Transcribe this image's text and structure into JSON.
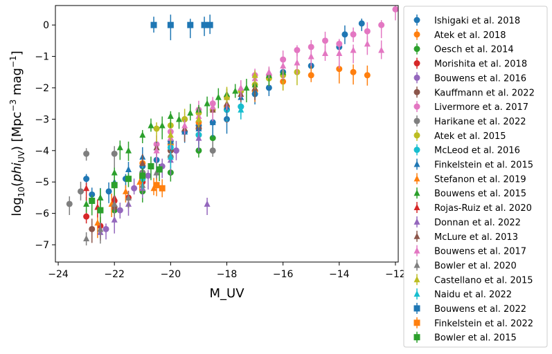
{
  "chart_data": {
    "type": "scatter",
    "xlabel": "M_UV",
    "ylabel": "log$_{10}$($phi_{\\rm UV}$) [Mpc$^{-3}$ mag$^{-1}$]",
    "xlim": [
      -24.1,
      -11.9
    ],
    "ylim": [
      -7.55,
      0.62
    ],
    "xticks": [
      -24,
      -22,
      -20,
      -18,
      -16,
      -14,
      -12
    ],
    "yticks": [
      0,
      -1,
      -2,
      -3,
      -4,
      -5,
      -6,
      -7
    ],
    "xtick_labels": [
      "−24",
      "−22",
      "−20",
      "−18",
      "−16",
      "−14",
      "−12"
    ],
    "ytick_labels": [
      "0",
      "−1",
      "−2",
      "−3",
      "−4",
      "−5",
      "−6",
      "−7"
    ],
    "legend_position": "outside-right",
    "grid": false,
    "series": [
      {
        "name": "Ishigaki et al. 2018",
        "color": "#1f77b4",
        "marker": "circle",
        "points": [
          [
            -23.0,
            -4.9
          ],
          [
            -22.8,
            -5.4
          ],
          [
            -22.2,
            -5.3
          ],
          [
            -21.6,
            -4.9
          ],
          [
            -21.0,
            -4.5
          ],
          [
            -20.5,
            -4.3
          ],
          [
            -20.0,
            -3.7
          ],
          [
            -19.5,
            -3.4
          ],
          [
            -19.0,
            -3.2
          ],
          [
            -18.5,
            -3.1
          ],
          [
            -18.0,
            -3.0
          ],
          [
            -17.5,
            -2.6
          ],
          [
            -17.0,
            -2.2
          ],
          [
            -16.5,
            -2.0
          ],
          [
            -16.0,
            -1.5
          ],
          [
            -15.0,
            -1.3
          ],
          [
            -14.0,
            -0.7
          ],
          [
            -13.8,
            -0.3
          ],
          [
            -13.2,
            0.05
          ]
        ]
      },
      {
        "name": "Atek et al. 2018",
        "color": "#ff7f0e",
        "marker": "circle",
        "points": [
          [
            -21.0,
            -4.4
          ],
          [
            -20.0,
            -3.8
          ],
          [
            -19.0,
            -3.1
          ],
          [
            -18.0,
            -2.6
          ],
          [
            -17.0,
            -2.1
          ],
          [
            -16.0,
            -1.8
          ],
          [
            -15.0,
            -1.6
          ],
          [
            -14.0,
            -1.4
          ],
          [
            -13.5,
            -1.5
          ],
          [
            -13.0,
            -1.6
          ]
        ]
      },
      {
        "name": "Oesch et al. 2014",
        "color": "#2ca02c",
        "marker": "circle",
        "points": [
          [
            -22.0,
            -5.9
          ],
          [
            -21.0,
            -5.3
          ],
          [
            -20.0,
            -4.7
          ],
          [
            -19.0,
            -4.0
          ],
          [
            -18.5,
            -3.6
          ]
        ]
      },
      {
        "name": "Morishita et al. 2018",
        "color": "#d62728",
        "marker": "circle",
        "points": [
          [
            -23.0,
            -6.1
          ],
          [
            -22.5,
            -6.4
          ],
          [
            -22.0,
            -5.6
          ],
          [
            -21.5,
            -5.5
          ],
          [
            -21.0,
            -5.0
          ]
        ]
      },
      {
        "name": "Bouwens et al. 2016",
        "color": "#9467bd",
        "marker": "circle",
        "points": [
          [
            -22.3,
            -6.5
          ],
          [
            -21.8,
            -5.9
          ],
          [
            -21.3,
            -5.2
          ],
          [
            -20.8,
            -4.8
          ],
          [
            -20.3,
            -4.5
          ],
          [
            -19.8,
            -4.0
          ]
        ]
      },
      {
        "name": "Kauffmann et al. 2022",
        "color": "#8c564b",
        "marker": "circle",
        "points": [
          [
            -22.8,
            -6.5
          ],
          [
            -22.0,
            -5.8
          ],
          [
            -21.0,
            -4.9
          ],
          [
            -20.0,
            -4.0
          ],
          [
            -19.0,
            -3.3
          ],
          [
            -18.0,
            -2.7
          ]
        ]
      },
      {
        "name": "Livermore et a. 2017",
        "color": "#e377c2",
        "marker": "circle",
        "points": [
          [
            -20.5,
            -3.8
          ],
          [
            -20.0,
            -3.4
          ],
          [
            -19.5,
            -3.0
          ],
          [
            -19.0,
            -2.7
          ],
          [
            -18.5,
            -2.5
          ],
          [
            -18.0,
            -2.3
          ],
          [
            -17.5,
            -2.1
          ],
          [
            -17.0,
            -1.6
          ],
          [
            -16.5,
            -1.6
          ],
          [
            -16.0,
            -1.1
          ],
          [
            -15.5,
            -0.8
          ],
          [
            -15.0,
            -0.7
          ],
          [
            -14.5,
            -0.5
          ],
          [
            -14.0,
            -0.6
          ],
          [
            -13.5,
            -0.3
          ],
          [
            -13.0,
            -0.2
          ],
          [
            -12.5,
            0.0
          ],
          [
            -12.0,
            0.5
          ]
        ]
      },
      {
        "name": "Harikane et al. 2022",
        "color": "#7f7f7f",
        "marker": "circle",
        "points": [
          [
            -23.6,
            -5.7
          ],
          [
            -23.2,
            -5.3
          ],
          [
            -23.0,
            -4.1
          ],
          [
            -22.0,
            -4.1
          ],
          [
            -21.0,
            -4.7
          ],
          [
            -20.0,
            -4.2
          ],
          [
            -19.0,
            -3.5
          ],
          [
            -18.5,
            -4.0
          ]
        ]
      },
      {
        "name": "Atek et al. 2015",
        "color": "#bcbd22",
        "marker": "circle",
        "points": [
          [
            -20.5,
            -3.3
          ],
          [
            -20.0,
            -3.2
          ],
          [
            -19.5,
            -3.0
          ],
          [
            -19.0,
            -2.8
          ],
          [
            -18.5,
            -2.7
          ],
          [
            -18.0,
            -2.3
          ],
          [
            -17.5,
            -2.1
          ],
          [
            -17.0,
            -1.9
          ],
          [
            -16.5,
            -1.7
          ],
          [
            -16.0,
            -1.6
          ],
          [
            -15.5,
            -1.5
          ]
        ]
      },
      {
        "name": "McLeod et al. 2016",
        "color": "#17becf",
        "marker": "circle",
        "points": [
          [
            -21.0,
            -4.9
          ],
          [
            -20.0,
            -3.9
          ],
          [
            -19.0,
            -3.5
          ],
          [
            -18.0,
            -2.7
          ],
          [
            -17.5,
            -2.6
          ]
        ]
      },
      {
        "name": "Finkelstein et al. 2015",
        "color": "#1f77b4",
        "marker": "triangle-up",
        "points": [
          [
            -22.5,
            -5.5
          ],
          [
            -22.0,
            -5.0
          ],
          [
            -21.5,
            -4.6
          ],
          [
            -21.0,
            -4.2
          ],
          [
            -20.5,
            -3.9
          ],
          [
            -20.0,
            -3.7
          ],
          [
            -19.5,
            -3.4
          ],
          [
            -19.0,
            -3.3
          ],
          [
            -18.5,
            -3.1
          ],
          [
            -18.0,
            -2.6
          ],
          [
            -17.5,
            -2.3
          ],
          [
            -17.0,
            -2.1
          ]
        ]
      },
      {
        "name": "Stefanon et al. 2019",
        "color": "#ff7f0e",
        "marker": "triangle-up",
        "points": [
          [
            -22.6,
            -6.3
          ],
          [
            -22.1,
            -5.7
          ],
          [
            -21.6,
            -5.3
          ],
          [
            -21.1,
            -5.0
          ],
          [
            -20.6,
            -5.2
          ]
        ]
      },
      {
        "name": "Bouwens et al. 2015",
        "color": "#2ca02c",
        "marker": "triangle-up",
        "points": [
          [
            -23.0,
            -5.7
          ],
          [
            -22.5,
            -5.5
          ],
          [
            -22.0,
            -4.7
          ],
          [
            -21.8,
            -3.9
          ],
          [
            -21.5,
            -4.0
          ],
          [
            -21.0,
            -3.5
          ],
          [
            -20.7,
            -3.2
          ],
          [
            -20.3,
            -3.2
          ],
          [
            -20.0,
            -2.9
          ],
          [
            -19.7,
            -3.0
          ],
          [
            -19.3,
            -2.8
          ],
          [
            -19.0,
            -2.7
          ],
          [
            -18.7,
            -2.5
          ],
          [
            -18.3,
            -2.3
          ],
          [
            -18.0,
            -2.2
          ],
          [
            -17.7,
            -2.1
          ],
          [
            -17.3,
            -2.0
          ],
          [
            -17.0,
            -1.9
          ],
          [
            -16.5,
            -1.6
          ],
          [
            -16.0,
            -1.5
          ]
        ]
      },
      {
        "name": "Rojas-Ruiz et al. 2020",
        "color": "#d62728",
        "marker": "triangle-up",
        "points": [
          [
            -23.0,
            -5.2
          ],
          [
            -22.6,
            -5.8
          ],
          [
            -22.0,
            -5.5
          ]
        ]
      },
      {
        "name": "Donnan et al. 2022",
        "color": "#9467bd",
        "marker": "triangle-up",
        "points": [
          [
            -22.5,
            -6.6
          ],
          [
            -22.0,
            -6.2
          ],
          [
            -21.5,
            -5.7
          ],
          [
            -21.0,
            -5.2
          ],
          [
            -20.5,
            -4.7
          ],
          [
            -20.0,
            -4.3
          ],
          [
            -19.0,
            -3.6
          ],
          [
            -18.7,
            -5.7
          ]
        ]
      },
      {
        "name": "McLure et al. 2013",
        "color": "#8c564b",
        "marker": "triangle-up",
        "points": [
          [
            -21.0,
            -4.4
          ],
          [
            -20.5,
            -3.9
          ],
          [
            -20.0,
            -3.6
          ],
          [
            -19.5,
            -3.3
          ],
          [
            -19.0,
            -3.0
          ],
          [
            -18.5,
            -2.7
          ],
          [
            -18.0,
            -2.5
          ],
          [
            -17.5,
            -2.2
          ],
          [
            -17.0,
            -2.0
          ]
        ]
      },
      {
        "name": "Bouwens et al. 2017",
        "color": "#e377c2",
        "marker": "triangle-up",
        "points": [
          [
            -20.5,
            -4.0
          ],
          [
            -20.0,
            -3.6
          ],
          [
            -19.5,
            -3.2
          ],
          [
            -19.0,
            -2.9
          ],
          [
            -18.5,
            -2.6
          ],
          [
            -18.0,
            -2.3
          ],
          [
            -17.5,
            -2.0
          ],
          [
            -17.0,
            -1.7
          ],
          [
            -16.5,
            -1.5
          ],
          [
            -16.0,
            -1.3
          ],
          [
            -15.5,
            -1.2
          ],
          [
            -15.0,
            -1.0
          ],
          [
            -14.5,
            -0.9
          ],
          [
            -14.0,
            -0.9
          ],
          [
            -13.5,
            -0.8
          ],
          [
            -13.0,
            -0.6
          ],
          [
            -12.5,
            -0.8
          ]
        ]
      },
      {
        "name": "Bowler et al. 2020",
        "color": "#7f7f7f",
        "marker": "triangle-up",
        "points": [
          [
            -23.0,
            -6.8
          ],
          [
            -22.5,
            -6.5
          ],
          [
            -22.0,
            -5.7
          ],
          [
            -21.5,
            -5.5
          ],
          [
            -21.0,
            -5.1
          ],
          [
            -20.5,
            -4.7
          ]
        ]
      },
      {
        "name": "Castellano et al. 2015",
        "color": "#bcbd22",
        "marker": "triangle-up",
        "points": [
          [
            -20.0,
            -3.5
          ],
          [
            -19.0,
            -3.0
          ],
          [
            -18.0,
            -2.3
          ],
          [
            -17.0,
            -1.6
          ]
        ]
      },
      {
        "name": "Naidu et al. 2022",
        "color": "#17becf",
        "marker": "triangle-up",
        "points": [
          [
            -21.0,
            -4.8
          ],
          [
            -20.0,
            -4.2
          ],
          [
            -17.5,
            -2.7
          ]
        ]
      },
      {
        "name": "Bouwens et al. 2022",
        "color": "#1f77b4",
        "marker": "square",
        "points": [
          [
            -20.6,
            0.0
          ],
          [
            -20.0,
            0.0
          ],
          [
            -19.3,
            0.0
          ],
          [
            -18.8,
            0.0
          ],
          [
            -18.6,
            0.0
          ]
        ]
      },
      {
        "name": "Finkelstein et al. 2022",
        "color": "#ff7f0e",
        "marker": "square",
        "points": [
          [
            -20.5,
            -5.1
          ],
          [
            -20.3,
            -5.2
          ]
        ]
      },
      {
        "name": "Bowler et al. 2015",
        "color": "#2ca02c",
        "marker": "square",
        "points": [
          [
            -22.8,
            -5.6
          ],
          [
            -22.5,
            -5.9
          ],
          [
            -22.0,
            -5.1
          ],
          [
            -21.5,
            -4.9
          ],
          [
            -21.0,
            -4.8
          ],
          [
            -20.7,
            -4.5
          ],
          [
            -20.4,
            -4.6
          ]
        ]
      }
    ]
  }
}
